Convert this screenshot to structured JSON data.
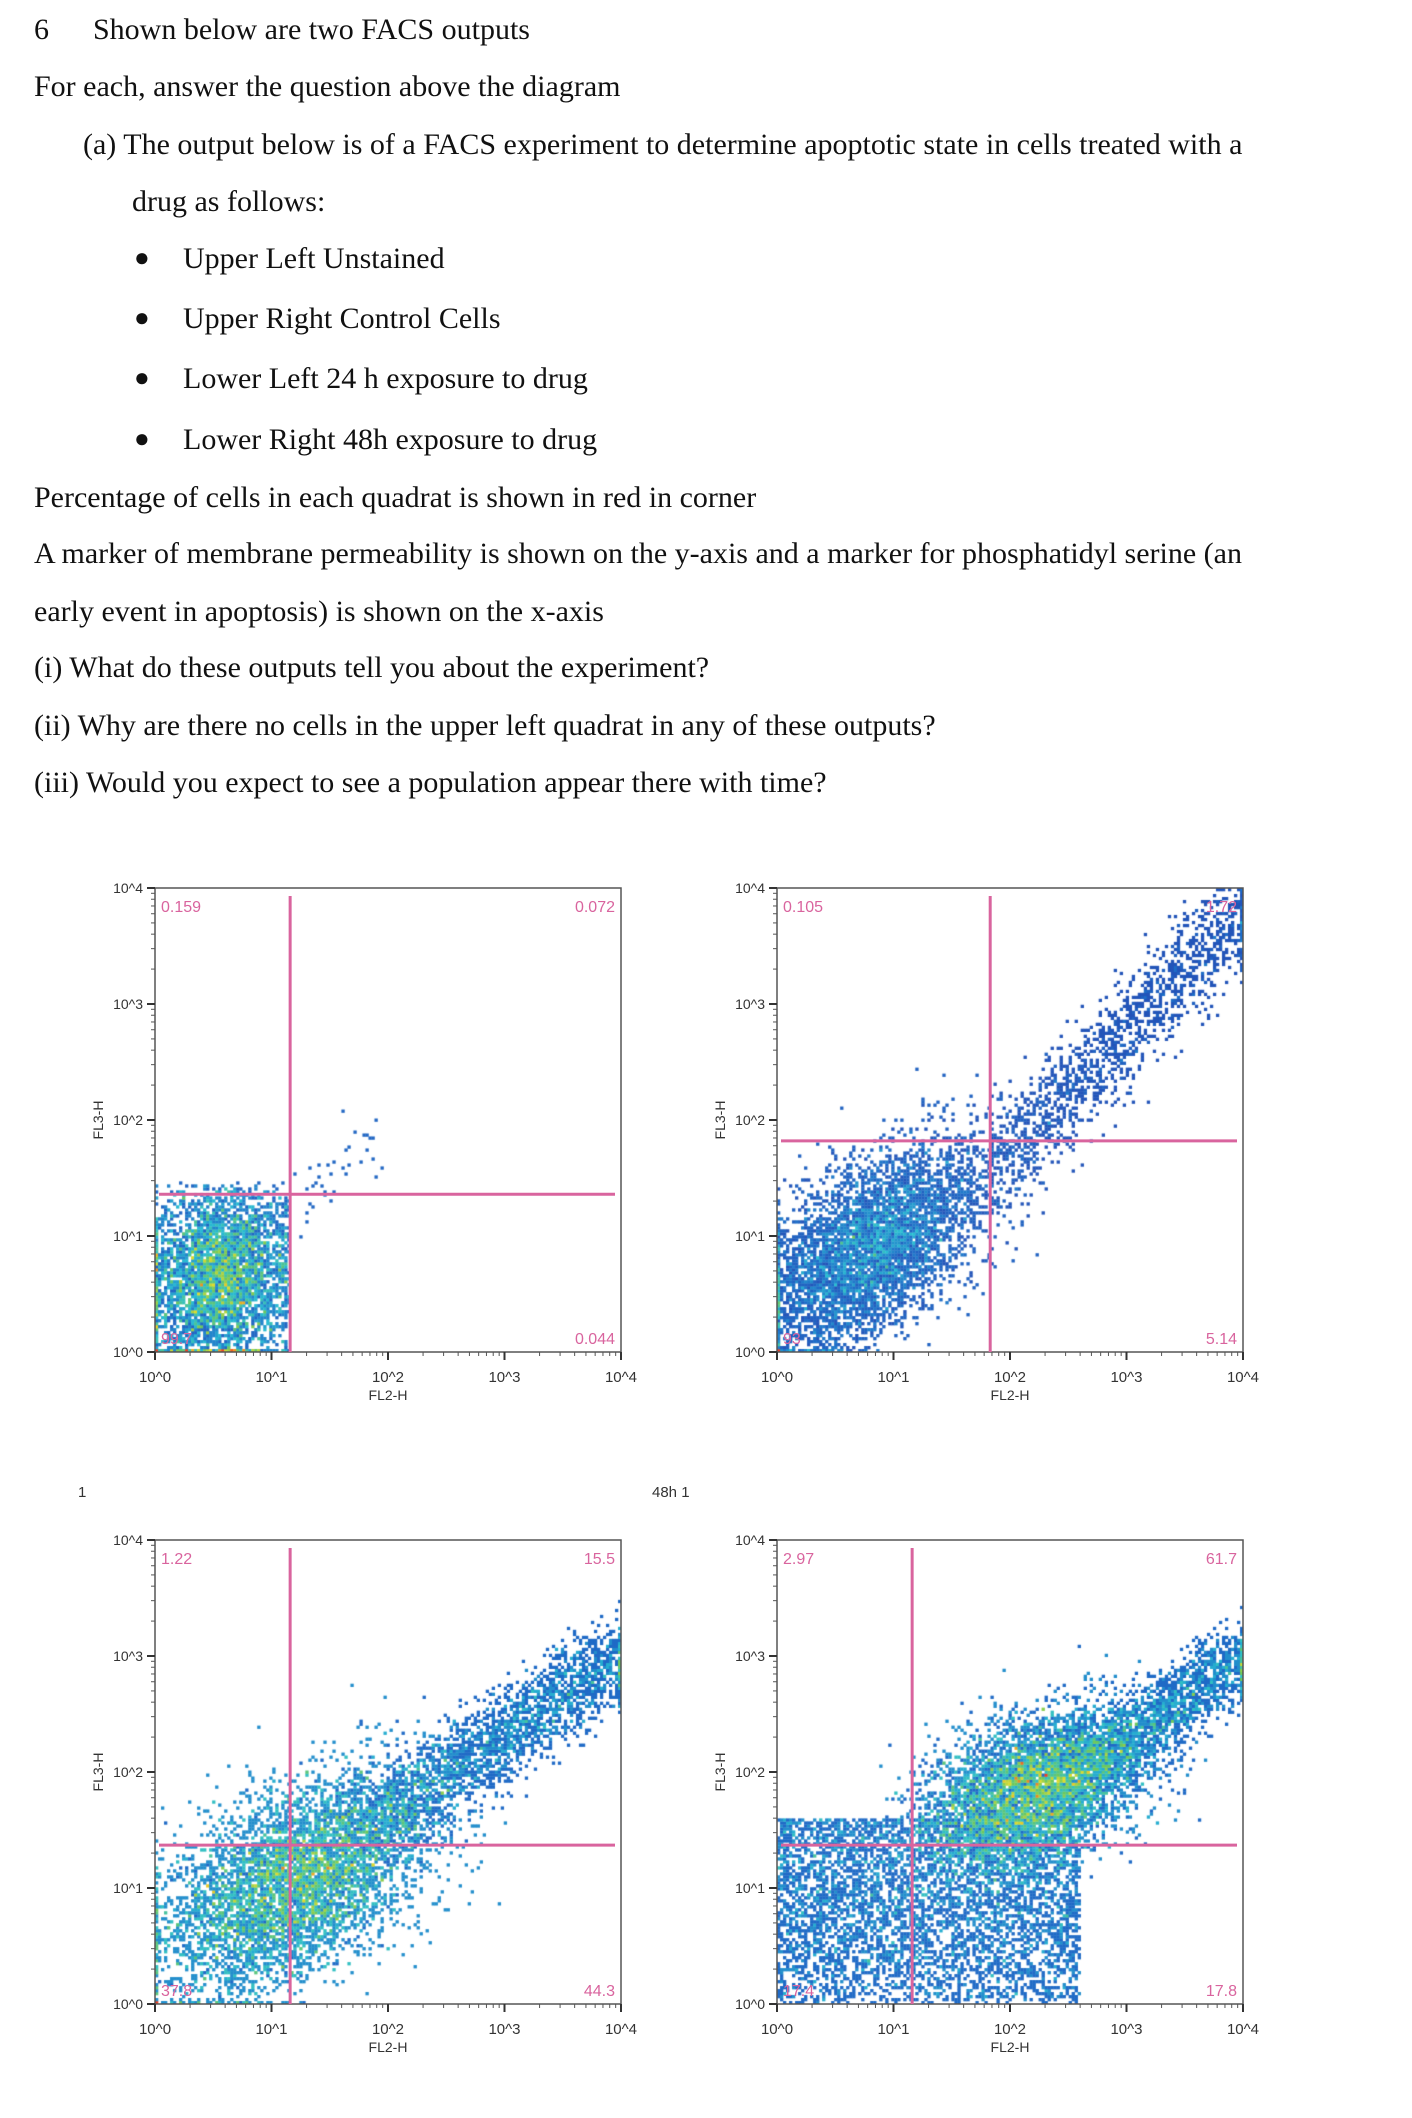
{
  "question": {
    "number": "6",
    "title": "Shown below are two FACS outputs",
    "instruction": "For each, answer the question above the diagram",
    "part_a_line1": "(a) The output below is of a FACS experiment to determine apoptotic state in cells treated with a",
    "part_a_line2": "drug as follows:",
    "bullets": [
      "Upper Left Unstained",
      "Upper Right Control Cells",
      "Lower Left 24 h exposure to drug",
      "Lower Right 48h exposure to drug"
    ],
    "note1": "Percentage of cells in each quadrat is shown in red in corner",
    "note2a": "A marker of membrane permeability is shown on the y-axis and a marker for phosphatidyl serine (an",
    "note2b": "early event in apoptosis) is shown on the x-axis",
    "q1": " (i) What do these outputs tell you about the experiment?",
    "q2": "(ii) Why are there no cells in the upper left quadrat in any of these outputs?",
    "q3": "(iii) Would you expect to see a population appear there with time?"
  },
  "captions": {
    "left": "1",
    "right": "48h 1"
  },
  "chart_data": [
    {
      "type": "scatter",
      "name": "Unstained",
      "xlabel": "FL2-H",
      "ylabel": "FL3-H",
      "xlim": [
        0,
        4
      ],
      "ylim": [
        0,
        4
      ],
      "scale": "log10",
      "tick_labels": [
        "10^0",
        "10^1",
        "10^2",
        "10^3",
        "10^4"
      ],
      "gate": {
        "x": 1.16,
        "y": 1.36
      },
      "quadrants": {
        "UL": "0.159",
        "UR": "0.072",
        "LL": "99.7",
        "LR": "0.044"
      },
      "populations": [
        {
          "mx": 0.55,
          "my": 0.65,
          "sx": 0.3,
          "sy": 0.38,
          "r": 0.1,
          "n": 7000,
          "xmax": 1.15,
          "ymax": 1.45
        },
        {
          "mx": 1.6,
          "my": 1.6,
          "sx": 0.3,
          "sy": 0.3,
          "r": 0.8,
          "n": 40
        }
      ]
    },
    {
      "type": "scatter",
      "name": "Control Cells",
      "xlabel": "FL2-H",
      "ylabel": "FL3-H",
      "xlim": [
        0,
        4
      ],
      "ylim": [
        0,
        4
      ],
      "scale": "log10",
      "tick_labels": [
        "10^0",
        "10^1",
        "10^2",
        "10^3",
        "10^4"
      ],
      "gate": {
        "x": 1.83,
        "y": 1.82
      },
      "quadrants": {
        "UL": "0.105",
        "UR": "1.72",
        "LL": "93",
        "LR": "5.14"
      },
      "populations": [
        {
          "mx": 0.8,
          "my": 0.9,
          "sx": 0.45,
          "sy": 0.42,
          "r": 0.55,
          "n": 9000
        },
        {
          "tail": true,
          "x0": 1.8,
          "y0": 1.5,
          "x1": 4,
          "y1": 3.8,
          "w": 0.17,
          "n": 1500
        }
      ]
    },
    {
      "type": "scatter",
      "name": "24 h exposure to drug",
      "xlabel": "FL2-H",
      "ylabel": "FL3-H",
      "xlim": [
        0,
        4
      ],
      "ylim": [
        0,
        4
      ],
      "scale": "log10",
      "tick_labels": [
        "10^0",
        "10^1",
        "10^2",
        "10^3",
        "10^4"
      ],
      "gate": {
        "x": 1.16,
        "y": 1.37
      },
      "quadrants": {
        "UL": "1.22",
        "UR": "15.5",
        "LL": "37.8",
        "LR": "44.3"
      },
      "populations": [
        {
          "mx": 1.2,
          "my": 1.05,
          "sx": 0.55,
          "sy": 0.45,
          "r": 0.5,
          "n": 10000
        },
        {
          "tail": true,
          "x0": 1.8,
          "y0": 1.5,
          "x1": 4,
          "y1": 3.0,
          "w": 0.17,
          "n": 2500
        }
      ]
    },
    {
      "type": "scatter",
      "name": "48h exposure to drug",
      "xlabel": "FL2-H",
      "ylabel": "FL3-H",
      "xlim": [
        0,
        4
      ],
      "ylim": [
        0,
        4
      ],
      "scale": "log10",
      "tick_labels": [
        "10^0",
        "10^1",
        "10^2",
        "10^3",
        "10^4"
      ],
      "gate": {
        "x": 1.16,
        "y": 1.37
      },
      "quadrants": {
        "UL": "2.97",
        "UR": "61.7",
        "LL": "17.4",
        "LR": "17.8"
      },
      "populations": [
        {
          "mx": 2.2,
          "my": 1.85,
          "sx": 0.45,
          "sy": 0.32,
          "r": 0.4,
          "n": 8000
        },
        {
          "uniform": true,
          "x0": 0,
          "x1": 2.6,
          "y0": 0,
          "y1": 1.6,
          "n": 5000
        },
        {
          "tail": true,
          "x0": 2.6,
          "y0": 2.0,
          "x1": 4,
          "y1": 3.0,
          "w": 0.15,
          "n": 1800
        }
      ]
    }
  ],
  "colors": {
    "gate": "#d9649e",
    "axis": "#333333",
    "text": "#111111"
  }
}
